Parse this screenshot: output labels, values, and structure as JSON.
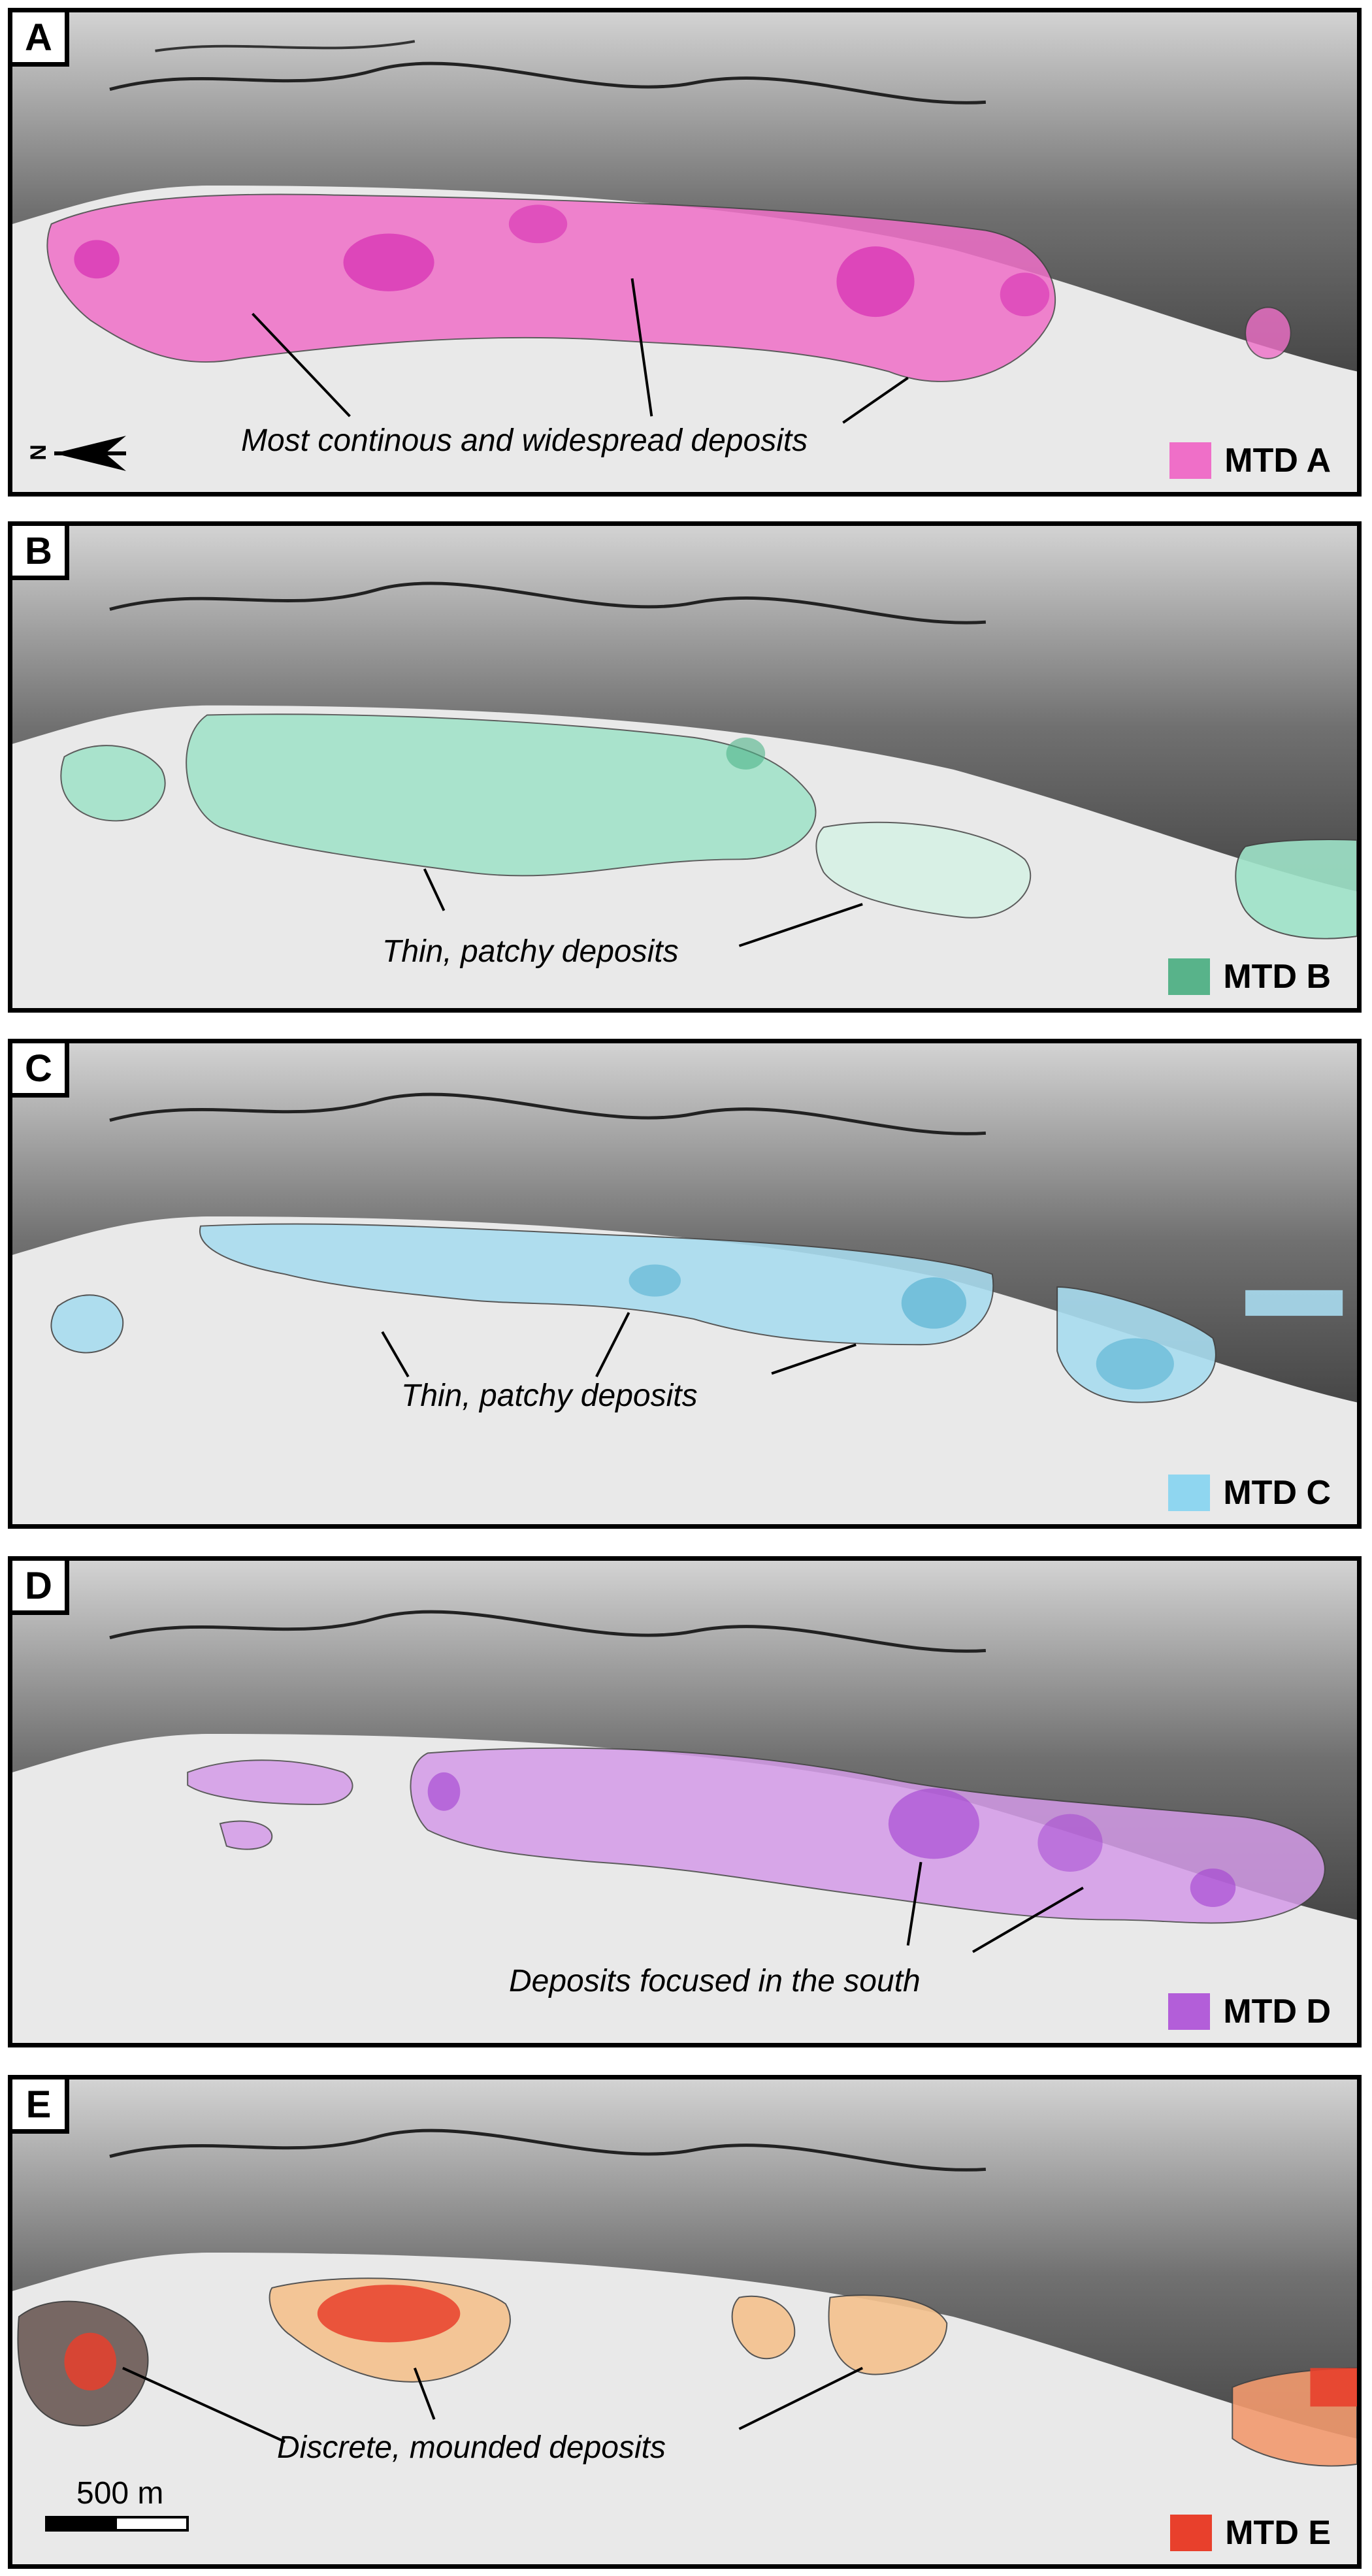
{
  "panels": [
    {
      "id": "A",
      "letter": "A",
      "legend": "MTD A",
      "color": "#ef6fc8",
      "dark": "#d21fae",
      "annotation": "Most continous and widespread deposits"
    },
    {
      "id": "B",
      "letter": "B",
      "legend": "MTD B",
      "color": "#9ee3c8",
      "dark": "#4fb489",
      "annotation": "Thin, patchy deposits"
    },
    {
      "id": "C",
      "letter": "C",
      "legend": "MTD C",
      "color": "#a8dcef",
      "dark": "#3aa3c8",
      "annotation": "Thin, patchy deposits"
    },
    {
      "id": "D",
      "letter": "D",
      "legend": "MTD D",
      "color": "#d49be8",
      "dark": "#a23fd0",
      "annotation": "Deposits focused in the south"
    },
    {
      "id": "E",
      "letter": "E",
      "legend": "MTD E",
      "color": "#f5c28e",
      "dark": "#e8402c",
      "annotation": "Discrete, mounded deposits"
    }
  ],
  "north_arrow": {
    "letter": "N"
  },
  "scale_bar": {
    "label": "500 m"
  }
}
